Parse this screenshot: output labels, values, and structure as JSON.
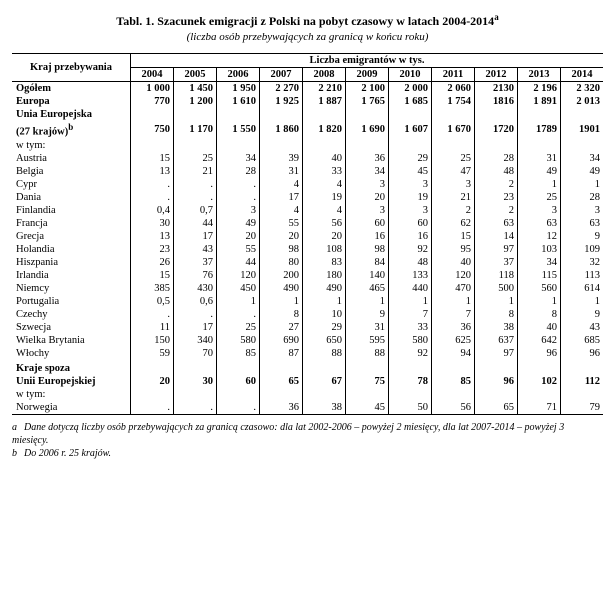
{
  "title": "Tabl. 1. Szacunek emigracji z Polski na pobyt czasowy w latach 2004-2014",
  "title_sup": "a",
  "subtitle": "(liczba osób przebywających za granicą w końcu roku)",
  "header_left": "Kraj przebywania",
  "header_right": "Liczba emigrantów w tys.",
  "years": [
    "2004",
    "2005",
    "2006",
    "2007",
    "2008",
    "2009",
    "2010",
    "2011",
    "2012",
    "2013",
    "2014"
  ],
  "rows": [
    {
      "label": "Ogółem",
      "bold": true,
      "indent": 0,
      "vals": [
        "1 000",
        "1 450",
        "1 950",
        "2 270",
        "2 210",
        "2 100",
        "2 000",
        "2 060",
        "2130",
        "2 196",
        "2 320"
      ]
    },
    {
      "label": "Europa",
      "bold": true,
      "indent": 0,
      "vals": [
        "770",
        "1 200",
        "1 610",
        "1 925",
        "1 887",
        "1 765",
        "1 685",
        "1 754",
        "1816",
        "1 891",
        "2 013"
      ]
    },
    {
      "label": "Unia Europejska",
      "bold": true,
      "indent": 1,
      "vals": [
        "",
        "",
        "",
        "",
        "",
        "",
        "",
        "",
        "",
        "",
        ""
      ]
    },
    {
      "label": "(27 krajów)",
      "sup": "b",
      "bold": true,
      "indent": 1,
      "vals": [
        "750",
        "1 170",
        "1 550",
        "1 860",
        "1 820",
        "1 690",
        "1 607",
        "1 670",
        "1720",
        "1789",
        "1901"
      ]
    },
    {
      "label": "w tym:",
      "indent": 1,
      "vals": [
        "",
        "",
        "",
        "",
        "",
        "",
        "",
        "",
        "",
        "",
        ""
      ]
    },
    {
      "label": "Austria",
      "indent": 2,
      "vals": [
        "15",
        "25",
        "34",
        "39",
        "40",
        "36",
        "29",
        "25",
        "28",
        "31",
        "34"
      ]
    },
    {
      "label": "Belgia",
      "indent": 2,
      "vals": [
        "13",
        "21",
        "28",
        "31",
        "33",
        "34",
        "45",
        "47",
        "48",
        "49",
        "49"
      ]
    },
    {
      "label": "Cypr",
      "indent": 2,
      "vals": [
        ".",
        ".",
        ".",
        "4",
        "4",
        "3",
        "3",
        "3",
        "2",
        "1",
        "1"
      ]
    },
    {
      "label": "Dania",
      "indent": 2,
      "vals": [
        ".",
        ".",
        ".",
        "17",
        "19",
        "20",
        "19",
        "21",
        "23",
        "25",
        "28"
      ]
    },
    {
      "label": "Finlandia",
      "indent": 2,
      "vals": [
        "0,4",
        "0,7",
        "3",
        "4",
        "4",
        "3",
        "3",
        "2",
        "2",
        "3",
        "3"
      ]
    },
    {
      "label": "Francja",
      "indent": 2,
      "vals": [
        "30",
        "44",
        "49",
        "55",
        "56",
        "60",
        "60",
        "62",
        "63",
        "63",
        "63"
      ]
    },
    {
      "label": "Grecja",
      "indent": 2,
      "vals": [
        "13",
        "17",
        "20",
        "20",
        "20",
        "16",
        "16",
        "15",
        "14",
        "12",
        "9"
      ]
    },
    {
      "label": "Holandia",
      "indent": 2,
      "vals": [
        "23",
        "43",
        "55",
        "98",
        "108",
        "98",
        "92",
        "95",
        "97",
        "103",
        "109"
      ]
    },
    {
      "label": "Hiszpania",
      "indent": 2,
      "vals": [
        "26",
        "37",
        "44",
        "80",
        "83",
        "84",
        "48",
        "40",
        "37",
        "34",
        "32"
      ]
    },
    {
      "label": "Irlandia",
      "indent": 2,
      "vals": [
        "15",
        "76",
        "120",
        "200",
        "180",
        "140",
        "133",
        "120",
        "118",
        "115",
        "113"
      ]
    },
    {
      "label": "Niemcy",
      "indent": 2,
      "vals": [
        "385",
        "430",
        "450",
        "490",
        "490",
        "465",
        "440",
        "470",
        "500",
        "560",
        "614"
      ]
    },
    {
      "label": "Portugalia",
      "indent": 2,
      "vals": [
        "0,5",
        "0,6",
        "1",
        "1",
        "1",
        "1",
        "1",
        "1",
        "1",
        "1",
        "1"
      ]
    },
    {
      "label": "Czechy",
      "indent": 2,
      "vals": [
        ".",
        ".",
        ".",
        "8",
        "10",
        "9",
        "7",
        "7",
        "8",
        "8",
        "9"
      ]
    },
    {
      "label": "Szwecja",
      "indent": 2,
      "vals": [
        "11",
        "17",
        "25",
        "27",
        "29",
        "31",
        "33",
        "36",
        "38",
        "40",
        "43"
      ]
    },
    {
      "label": "Wielka Brytania",
      "indent": 2,
      "vals": [
        "150",
        "340",
        "580",
        "690",
        "650",
        "595",
        "580",
        "625",
        "637",
        "642",
        "685"
      ]
    },
    {
      "label": "Włochy",
      "indent": 2,
      "vals": [
        "59",
        "70",
        "85",
        "87",
        "88",
        "88",
        "92",
        "94",
        "97",
        "96",
        "96"
      ]
    },
    {
      "label": "",
      "indent": 0,
      "vals": [
        "",
        "",
        "",
        "",
        "",
        "",
        "",
        "",
        "",
        "",
        ""
      ]
    },
    {
      "label": "Kraje spoza",
      "bold": true,
      "indent": 1,
      "vals": [
        "",
        "",
        "",
        "",
        "",
        "",
        "",
        "",
        "",
        "",
        ""
      ]
    },
    {
      "label": "Unii Europejskiej",
      "bold": true,
      "indent": 1,
      "vals": [
        "20",
        "30",
        "60",
        "65",
        "67",
        "75",
        "78",
        "85",
        "96",
        "102",
        "112"
      ]
    },
    {
      "label": "w tym:",
      "indent": 1,
      "vals": [
        "",
        "",
        "",
        "",
        "",
        "",
        "",
        "",
        "",
        "",
        ""
      ]
    },
    {
      "label": "Norwegia",
      "indent": 2,
      "last": true,
      "vals": [
        ".",
        ".",
        ".",
        "36",
        "38",
        "45",
        "50",
        "56",
        "65",
        "71",
        "79"
      ]
    }
  ],
  "footnote_a_key": "a",
  "footnote_a": "Dane dotyczą liczby osób przebywających za granicą czasowo: dla lat 2002-2006 – powyżej 2 miesięcy, dla lat 2007-2014 – powyżej 3 miesięcy.",
  "footnote_b_key": "b",
  "footnote_b": "Do 2006 r. 25 krajów."
}
